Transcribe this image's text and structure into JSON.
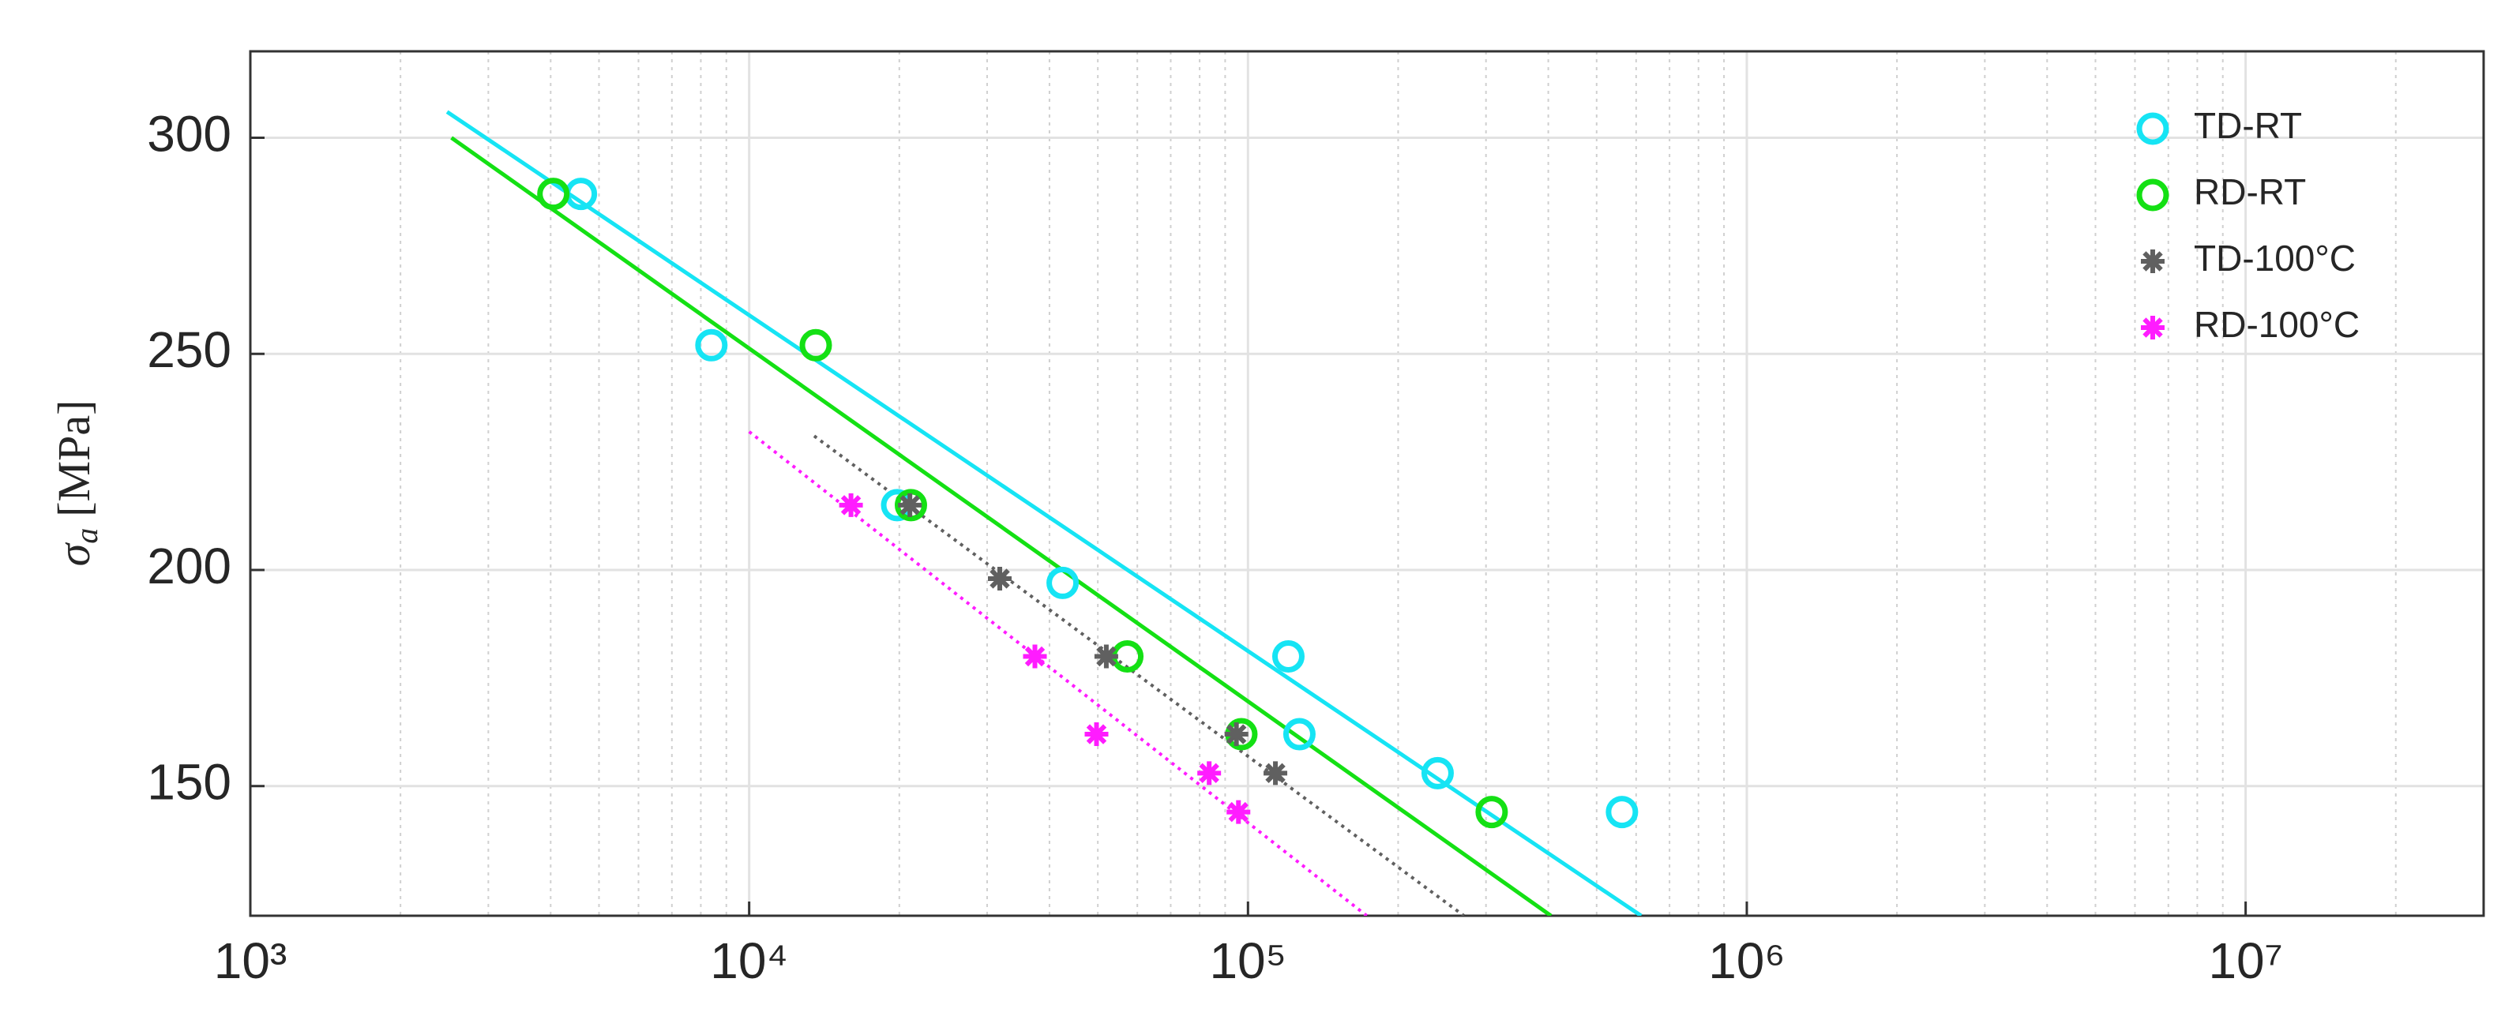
{
  "chart_data": {
    "type": "scatter",
    "y_label": {
      "symbol": "σ",
      "subscript": "a",
      "unit": "[MPa]"
    },
    "xscale": "log",
    "xlim": [
      1000,
      30000000
    ],
    "ylim": [
      120,
      320
    ],
    "xticks": [
      {
        "value": 1000,
        "label": "10³"
      },
      {
        "value": 10000,
        "label": "10⁴"
      },
      {
        "value": 100000,
        "label": "10⁵"
      },
      {
        "value": 1000000,
        "label": "10⁶"
      },
      {
        "value": 10000000,
        "label": "10⁷"
      }
    ],
    "xminorticks": [
      2000,
      3000,
      4000,
      5000,
      6000,
      7000,
      8000,
      9000,
      20000,
      30000,
      40000,
      50000,
      60000,
      70000,
      80000,
      90000,
      200000,
      300000,
      400000,
      500000,
      600000,
      700000,
      800000,
      900000,
      2000000,
      3000000,
      4000000,
      5000000,
      6000000,
      7000000,
      8000000,
      9000000,
      20000000
    ],
    "yticks": [
      150,
      200,
      250,
      300
    ],
    "grid": true,
    "legend": "upper right",
    "series": [
      {
        "name": "TD-RT",
        "color": "#16e4f4",
        "marker": "circle",
        "x": [
          4600,
          8400,
          19800,
          42500,
          120500,
          126800,
          240000,
          562000
        ],
        "values": [
          287,
          252,
          215,
          197,
          180,
          162,
          153,
          144
        ],
        "fit_x": [
          2480,
          614000
        ],
        "fit_y": [
          306,
          120
        ],
        "fit_style": "solid"
      },
      {
        "name": "RD-RT",
        "color": "#14e014",
        "marker": "circle",
        "x": [
          4050,
          13600,
          21100,
          57300,
          97000,
          308000
        ],
        "values": [
          287,
          252,
          215,
          180,
          162,
          144
        ],
        "fit_x": [
          2530,
          405000
        ],
        "fit_y": [
          300,
          120
        ],
        "fit_style": "solid"
      },
      {
        "name": "TD-100°C",
        "color": "#606060",
        "marker": "star",
        "x": [
          21000,
          31800,
          52000,
          94800,
          113500
        ],
        "values": [
          215,
          198,
          180,
          162,
          153
        ],
        "fit_x": [
          13500,
          271000
        ],
        "fit_y": [
          231,
          120
        ],
        "fit_style": "dotted"
      },
      {
        "name": "RD-100°C",
        "color": "#ff1cff",
        "marker": "star",
        "x": [
          16000,
          37400,
          49700,
          83600,
          95700
        ],
        "values": [
          215,
          180,
          162,
          153,
          144
        ],
        "fit_x": [
          10000,
          173000
        ],
        "fit_y": [
          232,
          120
        ],
        "fit_style": "dotted"
      }
    ]
  }
}
